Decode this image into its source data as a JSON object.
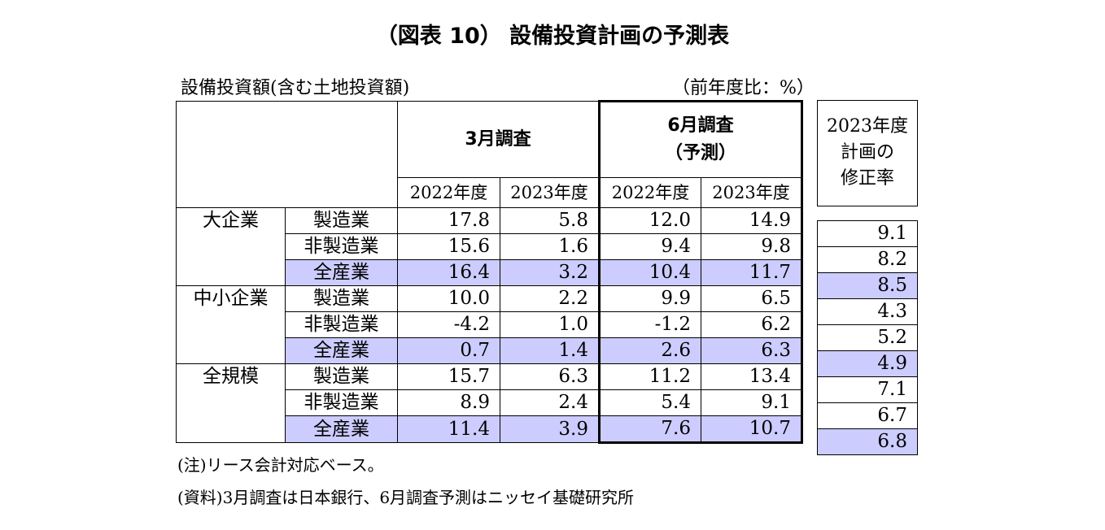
{
  "title": "（図表 10） 設備投資計画の予測表",
  "subtitle": "設備投資額(含む土地投資額)",
  "unit": "（前年度比：%）",
  "headers": {
    "march_survey": "3月調査",
    "june_survey_line1": "6月調査",
    "june_survey_line2": "（予測）",
    "fy2022": "2022年度",
    "fy2023": "2023年度",
    "revision_line1": "2023年度",
    "revision_line2": "計画の",
    "revision_line3": "修正率"
  },
  "categories": {
    "large": "大企業",
    "sme": "中小企業",
    "all": "全規模"
  },
  "sectors": {
    "mfg": "製造業",
    "nonmfg": "非製造業",
    "allind": "全産業"
  },
  "chart_data": {
    "type": "table",
    "title": "（図表 10） 設備投資計画の予測表",
    "columns": [
      "3月調査 2022年度",
      "3月調査 2023年度",
      "6月調査（予測） 2022年度",
      "6月調査（予測） 2023年度",
      "2023年度計画の修正率"
    ],
    "rows": [
      {
        "category": "大企業",
        "sector": "製造業",
        "values": [
          "17.8",
          "5.8",
          "12.0",
          "14.9",
          "9.1"
        ]
      },
      {
        "category": "大企業",
        "sector": "非製造業",
        "values": [
          "15.6",
          "1.6",
          "9.4",
          "9.8",
          "8.2"
        ]
      },
      {
        "category": "大企業",
        "sector": "全産業",
        "values": [
          "16.4",
          "3.2",
          "10.4",
          "11.7",
          "8.5"
        ]
      },
      {
        "category": "中小企業",
        "sector": "製造業",
        "values": [
          "10.0",
          "2.2",
          "9.9",
          "6.5",
          "4.3"
        ]
      },
      {
        "category": "中小企業",
        "sector": "非製造業",
        "values": [
          "-4.2",
          "1.0",
          "-1.2",
          "6.2",
          "5.2"
        ]
      },
      {
        "category": "中小企業",
        "sector": "全産業",
        "values": [
          "0.7",
          "1.4",
          "2.6",
          "6.3",
          "4.9"
        ]
      },
      {
        "category": "全規模",
        "sector": "製造業",
        "values": [
          "15.7",
          "6.3",
          "11.2",
          "13.4",
          "7.1"
        ]
      },
      {
        "category": "全規模",
        "sector": "非製造業",
        "values": [
          "8.9",
          "2.4",
          "5.4",
          "9.1",
          "6.7"
        ]
      },
      {
        "category": "全規模",
        "sector": "全産業",
        "values": [
          "11.4",
          "3.9",
          "7.6",
          "10.7",
          "6.8"
        ]
      }
    ],
    "highlight_color": "#ccccff"
  },
  "notes": {
    "note1": "(注)リース会計対応ベース。",
    "note2": "(資料)3月調査は日本銀行、6月調査予測はニッセイ基礎研究所"
  }
}
